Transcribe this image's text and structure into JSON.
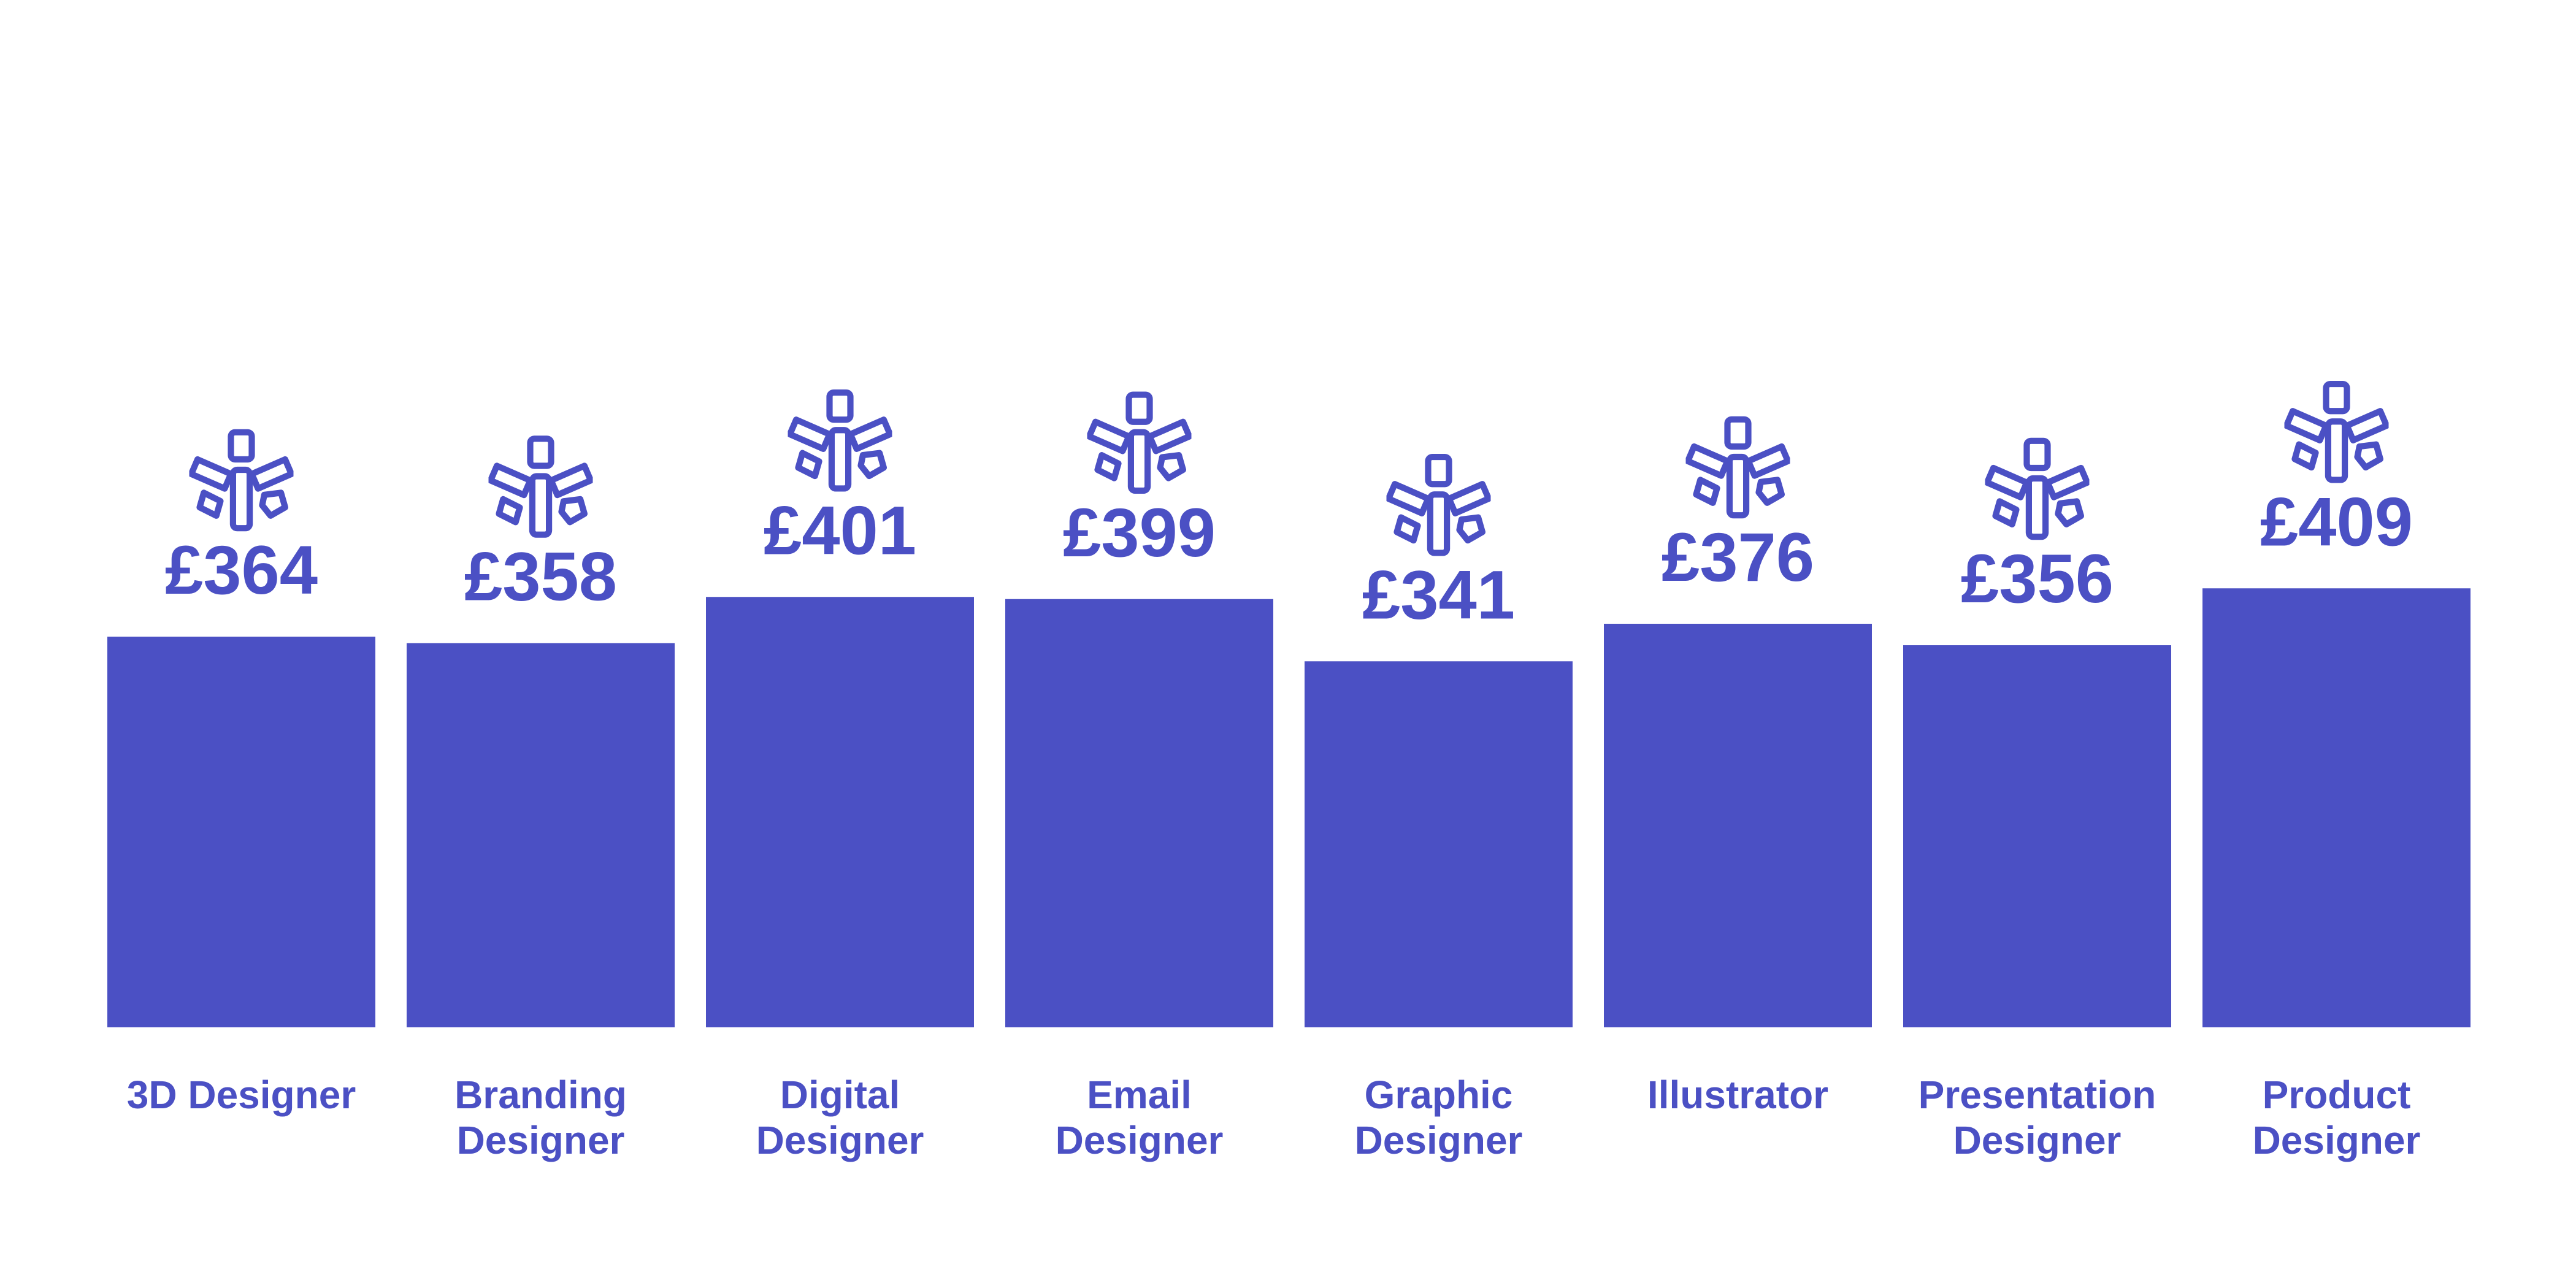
{
  "colors": {
    "bar": "#4b50c4",
    "label": "#4b50c4",
    "background": "#ffffff"
  },
  "icon": "branching-arrows-icon",
  "chart_data": {
    "type": "bar",
    "title": "",
    "xlabel": "",
    "ylabel": "",
    "ylim": [
      0,
      420
    ],
    "grid": false,
    "value_prefix": "£",
    "categories": [
      [
        "3D Designer"
      ],
      [
        "Branding",
        "Designer"
      ],
      [
        "Digital",
        "Designer"
      ],
      [
        "Email",
        "Designer"
      ],
      [
        "Graphic",
        "Designer"
      ],
      [
        "Illustrator"
      ],
      [
        "Presentation",
        "Designer"
      ],
      [
        "Product",
        "Designer"
      ]
    ],
    "values": [
      364,
      358,
      401,
      399,
      341,
      376,
      356,
      409
    ],
    "value_labels": [
      "£364",
      "£358",
      "£401",
      "£399",
      "£341",
      "£376",
      "£356",
      "£409"
    ]
  }
}
